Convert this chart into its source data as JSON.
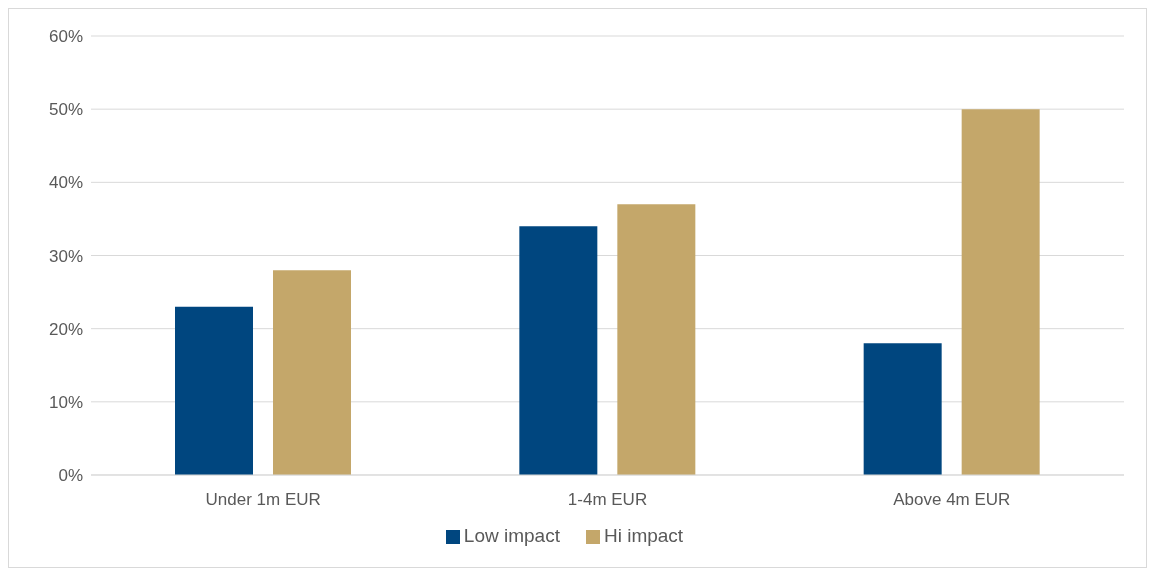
{
  "chart_data": {
    "type": "bar",
    "categories": [
      "Under 1m EUR",
      "1-4m EUR",
      "Above 4m EUR"
    ],
    "series": [
      {
        "name": "Low impact",
        "color": "#00467f",
        "values": [
          23,
          34,
          18
        ]
      },
      {
        "name": "Hi impact",
        "color": "#c4a76a",
        "values": [
          28,
          37,
          50
        ]
      }
    ],
    "ylim": [
      0,
      60
    ],
    "yticks": [
      {
        "value": 0,
        "label": "0%"
      },
      {
        "value": 10,
        "label": "10%"
      },
      {
        "value": 20,
        "label": "20%"
      },
      {
        "value": 30,
        "label": "30%"
      },
      {
        "value": 40,
        "label": "40%"
      },
      {
        "value": 50,
        "label": "50%"
      },
      {
        "value": 60,
        "label": "60%"
      }
    ],
    "grid": "y",
    "legend": "bottom"
  }
}
